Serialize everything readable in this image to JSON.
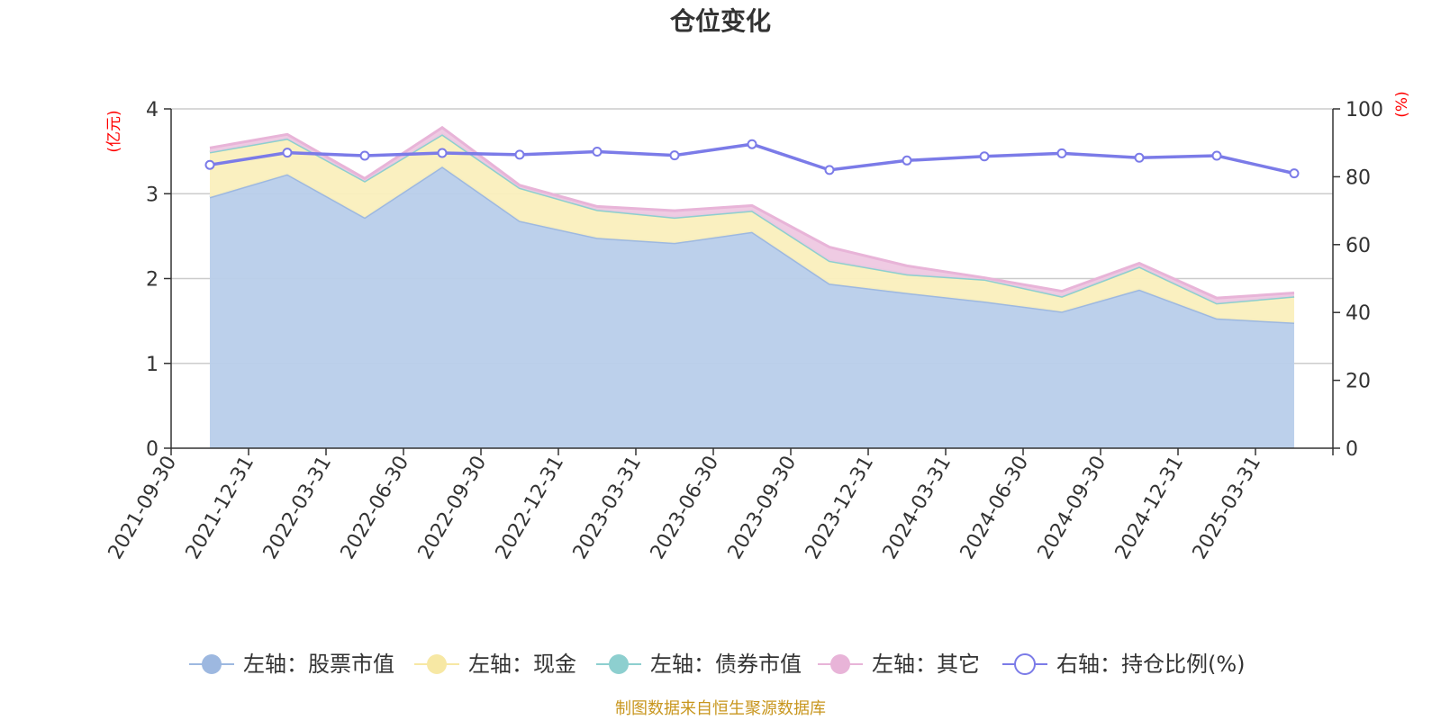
{
  "chart_data": {
    "type": "area",
    "title": "仓位变化",
    "left_axis_unit": "(亿元)",
    "right_axis_unit": "(%)",
    "x": [
      "2021-09-30",
      "2021-12-31",
      "2022-03-31",
      "2022-06-30",
      "2022-09-30",
      "2022-12-31",
      "2023-03-31",
      "2023-06-30",
      "2023-09-30",
      "2023-12-31",
      "2024-03-31",
      "2024-06-30",
      "2024-09-30",
      "2024-12-31",
      "2025-03-31"
    ],
    "ylim_left": [
      0,
      4
    ],
    "yticks_left": [
      0,
      1,
      2,
      3,
      4
    ],
    "ylim_right": [
      0,
      100
    ],
    "yticks_right": [
      0,
      20,
      40,
      60,
      80,
      100
    ],
    "grid": true,
    "legend_position": "bottom",
    "series": [
      {
        "name": "左轴：股票市值",
        "axis": "left",
        "kind": "area",
        "color": "#9db8e0",
        "fill": "#b8cdea",
        "values": [
          2.96,
          3.23,
          2.72,
          3.32,
          2.68,
          2.48,
          2.42,
          2.55,
          1.94,
          1.83,
          1.73,
          1.61,
          1.87,
          1.53,
          1.48
        ]
      },
      {
        "name": "左轴：现金",
        "axis": "left",
        "kind": "area",
        "color": "#f7e8a4",
        "fill": "#faefbd",
        "values": [
          0.53,
          0.42,
          0.43,
          0.38,
          0.39,
          0.33,
          0.3,
          0.25,
          0.27,
          0.22,
          0.26,
          0.18,
          0.27,
          0.18,
          0.31
        ]
      },
      {
        "name": "左轴：债券市值",
        "axis": "left",
        "kind": "area",
        "color": "#8dcfcf",
        "fill": "#a6dada",
        "values": [
          0.0,
          0.0,
          0.0,
          0.0,
          0.0,
          0.0,
          0.0,
          0.0,
          0.0,
          0.0,
          0.0,
          0.0,
          0.0,
          0.0,
          0.0
        ]
      },
      {
        "name": "左轴：其它",
        "axis": "left",
        "kind": "area",
        "color": "#e8b4d8",
        "fill": "#eec8e2",
        "values": [
          0.05,
          0.05,
          0.03,
          0.08,
          0.03,
          0.04,
          0.08,
          0.06,
          0.16,
          0.1,
          0.02,
          0.06,
          0.04,
          0.06,
          0.04
        ]
      },
      {
        "name": "右轴：持仓比例(%)",
        "axis": "right",
        "kind": "line",
        "color": "#7b7be8",
        "values": [
          83.5,
          87.1,
          86.2,
          87.0,
          86.5,
          87.4,
          86.3,
          89.6,
          82.0,
          84.8,
          86.0,
          86.9,
          85.6,
          86.2,
          81.0
        ]
      }
    ],
    "source_note": "制图数据来自恒生聚源数据库"
  }
}
